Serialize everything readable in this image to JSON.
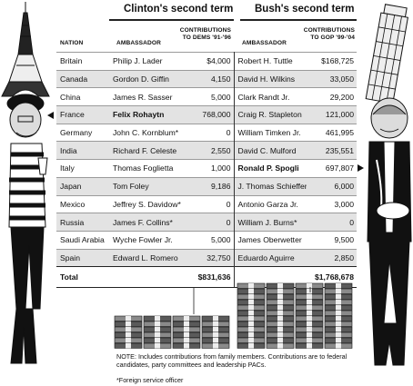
{
  "chart_data": {
    "type": "table",
    "column_group_headers": [
      "Clinton's second term",
      "Bush's second term"
    ],
    "columns": [
      "NATION",
      "AMBASSADOR",
      "CONTRIBUTIONS TO DEMS '91-'96",
      "AMBASSADOR",
      "CONTRIBUTIONS TO GOP '99-'04"
    ],
    "rows": [
      {
        "nation": "Britain",
        "clinton_amb": "Philip J. Lader",
        "clinton_contrib": "$4,000",
        "bush_amb": "Robert H. Tuttle",
        "bush_contrib": "$168,725"
      },
      {
        "nation": "Canada",
        "clinton_amb": "Gordon D. Giffin",
        "clinton_contrib": "4,150",
        "bush_amb": "David H. Wilkins",
        "bush_contrib": "33,050"
      },
      {
        "nation": "China",
        "clinton_amb": "James R. Sasser",
        "clinton_contrib": "5,000",
        "bush_amb": "Clark Randt Jr.",
        "bush_contrib": "29,200"
      },
      {
        "nation": "France",
        "clinton_amb": "Felix Rohaytn",
        "clinton_contrib": "768,000",
        "bush_amb": "Craig R. Stapleton",
        "bush_contrib": "121,000"
      },
      {
        "nation": "Germany",
        "clinton_amb": "John C. Kornblum*",
        "clinton_contrib": "0",
        "bush_amb": "William Timken Jr.",
        "bush_contrib": "461,995"
      },
      {
        "nation": "India",
        "clinton_amb": "Richard F. Celeste",
        "clinton_contrib": "2,550",
        "bush_amb": "David C. Mulford",
        "bush_contrib": "235,551"
      },
      {
        "nation": "Italy",
        "clinton_amb": "Thomas Foglietta",
        "clinton_contrib": "1,000",
        "bush_amb": "Ronald P. Spogli",
        "bush_contrib": "697,807"
      },
      {
        "nation": "Japan",
        "clinton_amb": "Tom Foley",
        "clinton_contrib": "9,186",
        "bush_amb": "J. Thomas Schieffer",
        "bush_contrib": "6,000"
      },
      {
        "nation": "Mexico",
        "clinton_amb": "Jeffrey S. Davidow*",
        "clinton_contrib": "0",
        "bush_amb": "Antonio Garza Jr.",
        "bush_contrib": "3,000"
      },
      {
        "nation": "Russia",
        "clinton_amb": "James F. Collins*",
        "clinton_contrib": "0",
        "bush_amb": "William J. Burns*",
        "bush_contrib": "0"
      },
      {
        "nation": "Saudi Arabia",
        "clinton_amb": "Wyche Fowler Jr.",
        "clinton_contrib": "5,000",
        "bush_amb": "James Oberwetter",
        "bush_contrib": "9,500"
      },
      {
        "nation": "Spain",
        "clinton_amb": "Edward L. Romero",
        "clinton_contrib": "32,750",
        "bush_amb": "Eduardo Aguirre",
        "bush_contrib": "2,850"
      }
    ],
    "total_label": "Total",
    "clinton_total": "$831,636",
    "bush_total": "$1,768,678",
    "clinton_total_value": 831636,
    "bush_total_value": 1768678,
    "highlighted": {
      "clinton": "Felix Rohaytn",
      "bush": "Ronald P. Spogli"
    }
  },
  "note": "NOTE: Includes contributions from family members. Contributions are to federal candidates, party committees and leadership PACs.",
  "footnote": "*Foreign service officer",
  "colors": {
    "shade": "#e3e3e3",
    "ink": "#111111",
    "rule": "#9a9a9a"
  },
  "illustrations": [
    "eiffel-tower",
    "clinton-caricature-french",
    "leaning-tower-of-pisa",
    "bush-ambassador-caricature-italian",
    "money-stack"
  ]
}
